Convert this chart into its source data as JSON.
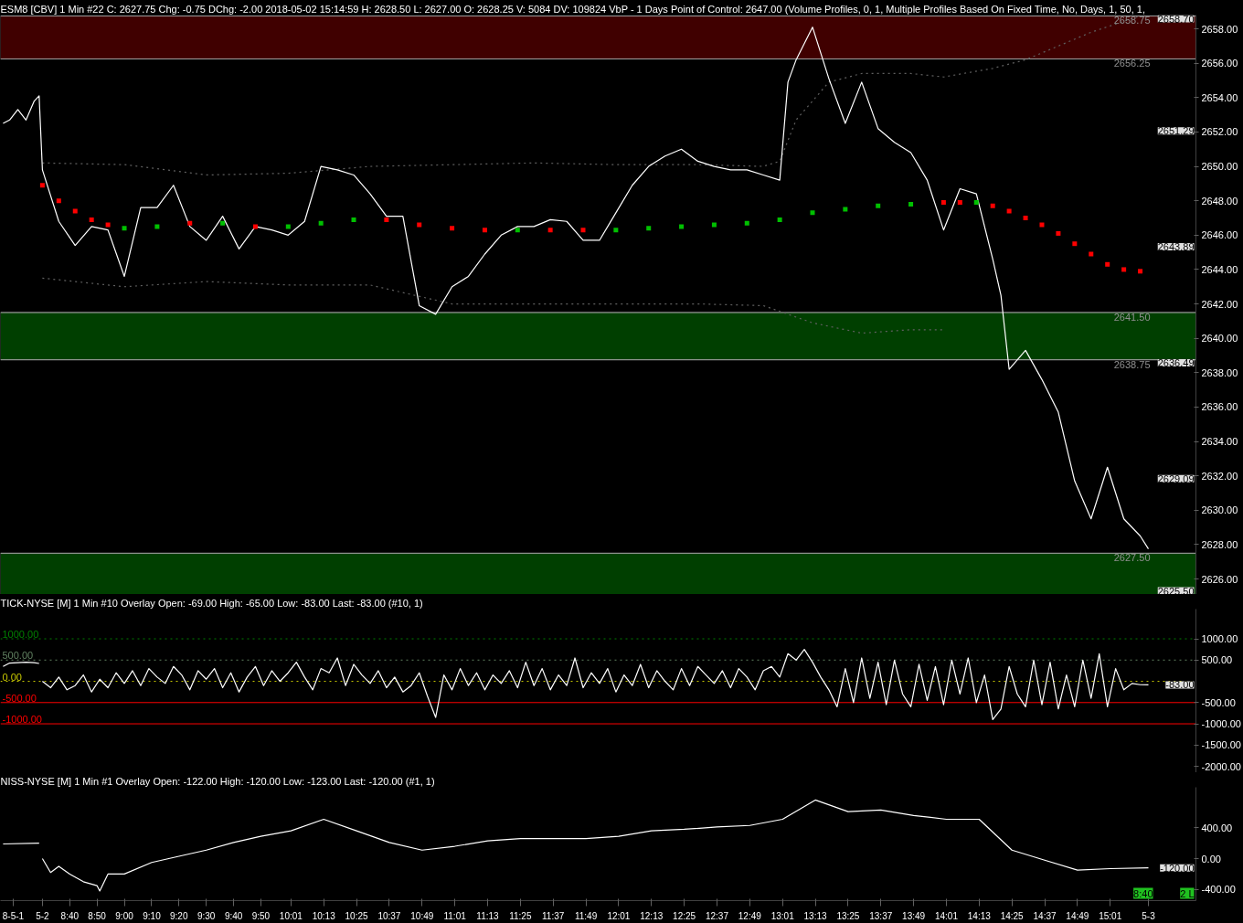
{
  "chart_data": [
    {
      "type": "line",
      "title": "ESM8 [CBV]  1 Min  #22 C: 2627.75 Chg: -0.75 DChg: -2.00 2018-05-02 15:14:59 H: 2628.50 L: 2627.00 O: 2628.25 V: 5084 DV: 109824 VbP - 1 Days  Point of Control: 2647.00  (Volume Profiles, 0, 1, Multiple Profiles Based On Fixed Time, No, Days, 1, 50, 1,",
      "xlim": [
        8.244,
        15.54
      ],
      "ylim": [
        2625.1,
        2658.8
      ],
      "tick_labels": "y",
      "grid": false,
      "yticks": [
        {
          "value": 2626,
          "label": "2626.00"
        },
        {
          "value": 2628,
          "label": "2628.00"
        },
        {
          "value": 2630,
          "label": "2630.00"
        },
        {
          "value": 2632,
          "label": "2632.00"
        },
        {
          "value": 2634,
          "label": "2634.00"
        },
        {
          "value": 2636,
          "label": "2636.00"
        },
        {
          "value": 2638,
          "label": "2638.00"
        },
        {
          "value": 2640,
          "label": "2640.00"
        },
        {
          "value": 2642,
          "label": "2642.00"
        },
        {
          "value": 2644,
          "label": "2644.00"
        },
        {
          "value": 2646,
          "label": "2646.00"
        },
        {
          "value": 2648,
          "label": "2648.00"
        },
        {
          "value": 2650,
          "label": "2650.00"
        },
        {
          "value": 2652,
          "label": "2652.00"
        },
        {
          "value": 2654,
          "label": "2654.00"
        },
        {
          "value": 2656,
          "label": "2656.00"
        },
        {
          "value": 2658,
          "label": "2658.00"
        }
      ],
      "bands": [
        {
          "axis": "y",
          "from": 2656.25,
          "to": 2658.75,
          "color": "#400000"
        },
        {
          "axis": "y",
          "from": 2638.75,
          "to": 2641.5,
          "color": "#003f00"
        },
        {
          "axis": "y",
          "from": 2625.1,
          "to": 2627.5,
          "color": "#003f00"
        }
      ],
      "ref_lines": [
        {
          "axis": "y",
          "value": 2658.75,
          "label": "2658.75",
          "color": "#a0a0a0",
          "line_style": "solid"
        },
        {
          "axis": "y",
          "value": 2656.25,
          "label": "2656.25",
          "color": "#a0a0a0",
          "line_style": "solid"
        },
        {
          "axis": "y",
          "value": 2641.5,
          "label": "2641.50",
          "color": "#a0a0a0",
          "line_style": "solid"
        },
        {
          "axis": "y",
          "value": 2638.75,
          "label": "2638.75",
          "color": "#a0a0a0",
          "line_style": "solid"
        },
        {
          "axis": "y",
          "value": 2627.5,
          "label": "2627.50",
          "color": "#a0a0a0",
          "line_style": "solid"
        }
      ],
      "annotations": [
        "2658.70",
        "2651.29",
        "2643.89",
        "2636.49",
        "2629.09",
        "2625.50"
      ],
      "series": [
        {
          "color": "#606060",
          "line_style": "dotted",
          "x": [
            8.5,
            9.0,
            9.5,
            10.0,
            10.5,
            11.0,
            11.5,
            12.0,
            12.5,
            12.9,
            13.0,
            13.1,
            13.3,
            13.5,
            13.8,
            14.0,
            14.3,
            14.5,
            14.7,
            14.9,
            15.2
          ],
          "values": [
            2650.2,
            2650.1,
            2649.5,
            2649.6,
            2650.0,
            2650.1,
            2650.2,
            2650.1,
            2650.1,
            2650.0,
            2650.3,
            2652.7,
            2654.9,
            2655.4,
            2655.4,
            2655.2,
            2655.7,
            2656.2,
            2657.0,
            2657.8,
            2658.75
          ]
        },
        {
          "color": "#606060",
          "line_style": "dotted",
          "x": [
            8.5,
            9.0,
            9.5,
            10.0,
            10.5,
            11.0,
            11.5,
            12.0,
            12.5,
            12.9,
            13.05,
            13.2,
            13.5,
            13.8,
            14.0
          ],
          "values": [
            2643.5,
            2643.0,
            2643.3,
            2643.1,
            2643.1,
            2642.0,
            2642.0,
            2642.0,
            2642.0,
            2641.9,
            2641.4,
            2640.9,
            2640.3,
            2640.5,
            2640.5
          ]
        },
        {
          "type": "scatter",
          "marker": "square",
          "x": [
            8.5,
            8.6,
            8.7,
            8.8,
            8.9,
            9.0,
            9.2,
            9.4,
            9.6,
            9.8,
            10.0,
            10.2,
            10.4,
            10.6,
            10.8,
            11.0,
            11.2,
            11.4,
            11.6,
            11.8,
            12.0,
            12.2,
            12.4,
            12.6,
            12.8,
            13.0,
            13.2,
            13.4,
            13.6,
            13.8,
            14.0,
            14.1,
            14.2,
            14.3,
            14.4,
            14.5,
            14.6,
            14.7,
            14.8,
            14.9,
            15.0,
            15.1,
            15.2
          ],
          "values": [
            2648.9,
            2648.0,
            2647.4,
            2646.9,
            2646.6,
            2646.4,
            2646.5,
            2646.7,
            2646.7,
            2646.5,
            2646.5,
            2646.7,
            2646.9,
            2646.9,
            2646.6,
            2646.4,
            2646.3,
            2646.3,
            2646.3,
            2646.3,
            2646.3,
            2646.4,
            2646.5,
            2646.6,
            2646.7,
            2646.9,
            2647.3,
            2647.5,
            2647.7,
            2647.8,
            2647.9,
            2647.9,
            2647.9,
            2647.7,
            2647.4,
            2647.0,
            2646.6,
            2646.1,
            2645.5,
            2644.9,
            2644.3,
            2644.0,
            2643.9
          ],
          "colors": [
            "#ff0000",
            "#ff0000",
            "#ff0000",
            "#ff0000",
            "#ff0000",
            "#00c000",
            "#00c000",
            "#ff0000",
            "#00c000",
            "#ff0000",
            "#00c000",
            "#00c000",
            "#00c000",
            "#ff0000",
            "#ff0000",
            "#ff0000",
            "#ff0000",
            "#00c000",
            "#ff0000",
            "#ff0000",
            "#00c000",
            "#00c000",
            "#00c000",
            "#00c000",
            "#00c000",
            "#00c000",
            "#00c000",
            "#00c000",
            "#00c000",
            "#00c000",
            "#ff0000",
            "#ff0000",
            "#00c000",
            "#ff0000",
            "#ff0000",
            "#ff0000",
            "#ff0000",
            "#ff0000",
            "#ff0000",
            "#ff0000",
            "#ff0000",
            "#ff0000",
            "#ff0000"
          ]
        },
        {
          "color": "#ffffff",
          "line_style": "solid",
          "x": [
            8.26,
            8.3,
            8.35,
            8.4,
            8.45,
            8.48,
            8.5,
            8.6,
            8.7,
            8.8,
            8.9,
            9.0,
            9.1,
            9.2,
            9.3,
            9.4,
            9.5,
            9.6,
            9.7,
            9.8,
            9.9,
            10.0,
            10.1,
            10.2,
            10.3,
            10.4,
            10.5,
            10.6,
            10.7,
            10.8,
            10.9,
            11.0,
            11.1,
            11.2,
            11.3,
            11.4,
            11.5,
            11.6,
            11.7,
            11.8,
            11.9,
            12.0,
            12.1,
            12.2,
            12.3,
            12.4,
            12.5,
            12.6,
            12.7,
            12.8,
            12.9,
            13.0,
            13.05,
            13.1,
            13.2,
            13.3,
            13.4,
            13.5,
            13.6,
            13.7,
            13.8,
            13.9,
            14.0,
            14.1,
            14.2,
            14.3,
            14.35,
            14.4,
            14.5,
            14.6,
            14.7,
            14.8,
            14.9,
            15.0,
            15.1,
            15.2,
            15.25
          ],
          "values": [
            2652.5,
            2652.7,
            2653.3,
            2652.7,
            2653.8,
            2654.1,
            2649.8,
            2646.8,
            2645.4,
            2646.5,
            2646.3,
            2643.6,
            2647.6,
            2647.6,
            2648.9,
            2646.5,
            2645.7,
            2647.1,
            2645.2,
            2646.5,
            2646.3,
            2646.0,
            2646.8,
            2650.0,
            2649.8,
            2649.5,
            2648.4,
            2647.1,
            2647.1,
            2641.9,
            2641.4,
            2643.0,
            2643.6,
            2644.9,
            2646.0,
            2646.5,
            2646.5,
            2646.9,
            2646.8,
            2645.7,
            2645.7,
            2647.3,
            2648.9,
            2650.0,
            2650.6,
            2651.0,
            2650.3,
            2650.0,
            2649.8,
            2649.8,
            2649.5,
            2649.2,
            2654.9,
            2656.2,
            2658.1,
            2655.1,
            2652.5,
            2654.9,
            2652.2,
            2651.4,
            2650.8,
            2649.2,
            2646.3,
            2648.7,
            2648.4,
            2644.6,
            2642.5,
            2638.2,
            2639.3,
            2637.6,
            2635.7,
            2631.7,
            2629.5,
            2632.5,
            2629.5,
            2628.5,
            2627.75
          ]
        }
      ]
    },
    {
      "type": "line",
      "title": "TICK-NYSE [M]  1 Min  #10 Overlay  Open: -69.00  High: -65.00  Low: -83.00  Last: -83.00  (#10, 1)",
      "xlim": [
        8.244,
        15.54
      ],
      "ylim": [
        -2150,
        1700
      ],
      "tick_labels": "y",
      "grid": false,
      "yticks": [
        {
          "value": 1000,
          "label": "1000.00"
        },
        {
          "value": 500,
          "label": "500.00"
        },
        {
          "value": -500,
          "label": "-500.00"
        },
        {
          "value": -1000,
          "label": "-1000.00"
        },
        {
          "value": -1500,
          "label": "-1500.00"
        },
        {
          "value": -2000,
          "label": "-2000.00"
        }
      ],
      "ref_lines": [
        {
          "axis": "y",
          "value": 1000,
          "label": "1000.00",
          "color": "#008000",
          "line_style": "dotted"
        },
        {
          "axis": "y",
          "value": 500,
          "label": "500.00",
          "color": "#608060",
          "line_style": "dotted"
        },
        {
          "axis": "y",
          "value": 0,
          "label": "0.00",
          "color": "#c8c800",
          "line_style": "dotted"
        },
        {
          "axis": "y",
          "value": -500,
          "label": "-500.00",
          "color": "#ff0000",
          "line_style": "solid"
        },
        {
          "axis": "y",
          "value": -1000,
          "label": "-1000.00",
          "color": "#ff0000",
          "line_style": "solid"
        }
      ],
      "annotations": [
        "-83.00"
      ],
      "series": [
        {
          "color": "#ffffff",
          "line_style": "solid",
          "x": [
            8.26,
            8.3,
            8.35,
            8.4,
            8.45,
            8.48
          ],
          "values": [
            350,
            430,
            440,
            450,
            440,
            420
          ]
        },
        {
          "color": "#ffffff",
          "line_style": "solid",
          "x": [
            8.5,
            8.55,
            8.6,
            8.65,
            8.7,
            8.75,
            8.8,
            8.85,
            8.9,
            8.95,
            9.0,
            9.05,
            9.1,
            9.15,
            9.2,
            9.25,
            9.3,
            9.35,
            9.4,
            9.45,
            9.5,
            9.55,
            9.6,
            9.65,
            9.7,
            9.75,
            9.8,
            9.85,
            9.9,
            9.95,
            10.0,
            10.05,
            10.1,
            10.15,
            10.2,
            10.25,
            10.3,
            10.35,
            10.4,
            10.45,
            10.5,
            10.55,
            10.6,
            10.65,
            10.7,
            10.75,
            10.8,
            10.85,
            10.9,
            10.95,
            11.0,
            11.05,
            11.1,
            11.15,
            11.2,
            11.25,
            11.3,
            11.35,
            11.4,
            11.45,
            11.5,
            11.55,
            11.6,
            11.65,
            11.7,
            11.75,
            11.8,
            11.85,
            11.9,
            11.95,
            12.0,
            12.05,
            12.1,
            12.15,
            12.2,
            12.25,
            12.3,
            12.35,
            12.4,
            12.45,
            12.5,
            12.55,
            12.6,
            12.65,
            12.7,
            12.75,
            12.8,
            12.85,
            12.9,
            12.95,
            13.0,
            13.05,
            13.1,
            13.15,
            13.2,
            13.25,
            13.3,
            13.35,
            13.4,
            13.45,
            13.5,
            13.55,
            13.6,
            13.65,
            13.7,
            13.75,
            13.8,
            13.85,
            13.9,
            13.95,
            14.0,
            14.05,
            14.1,
            14.15,
            14.2,
            14.25,
            14.3,
            14.35,
            14.4,
            14.45,
            14.5,
            14.55,
            14.6,
            14.65,
            14.7,
            14.75,
            14.8,
            14.85,
            14.9,
            14.95,
            15.0,
            15.05,
            15.1,
            15.15,
            15.2,
            15.25
          ],
          "values": [
            0,
            -150,
            100,
            -200,
            -100,
            150,
            -250,
            50,
            -150,
            200,
            -50,
            250,
            -100,
            300,
            100,
            -50,
            350,
            150,
            -200,
            250,
            50,
            300,
            -150,
            200,
            -250,
            100,
            350,
            -100,
            250,
            0,
            200,
            450,
            100,
            -200,
            300,
            200,
            550,
            -100,
            400,
            150,
            -50,
            250,
            -150,
            100,
            -250,
            -100,
            200,
            -350,
            -850,
            150,
            -200,
            300,
            -100,
            200,
            -200,
            150,
            -50,
            250,
            -150,
            450,
            -100,
            300,
            -200,
            150,
            -100,
            550,
            -150,
            200,
            -50,
            300,
            -250,
            150,
            -100,
            400,
            -150,
            250,
            0,
            -200,
            300,
            -100,
            350,
            150,
            -50,
            250,
            -150,
            300,
            100,
            -200,
            250,
            350,
            100,
            650,
            500,
            750,
            450,
            100,
            -200,
            -600,
            300,
            -500,
            550,
            -400,
            450,
            -550,
            500,
            -300,
            -600,
            400,
            -450,
            350,
            -550,
            500,
            -300,
            550,
            -500,
            150,
            -900,
            -650,
            350,
            -300,
            -600,
            500,
            -550,
            450,
            -650,
            150,
            -600,
            500,
            -400,
            650,
            -600,
            300,
            -200,
            -50,
            -80,
            -83
          ]
        }
      ]
    },
    {
      "type": "line",
      "title": "NISS-NYSE [M]  1 Min  #1 Overlay  Open: -122.00  High: -120.00  Low: -123.00  Last: -120.00  (#1, 1)",
      "xlim": [
        8.244,
        15.54
      ],
      "ylim": [
        -545,
        925
      ],
      "grid": false,
      "yticks": [
        {
          "value": 400,
          "label": "400.00"
        },
        {
          "value": 0,
          "label": "0.00"
        },
        {
          "value": -400,
          "label": "-400.00"
        }
      ],
      "xticks": [
        {
          "value": 8.322,
          "label": "8-5-1"
        },
        {
          "value": 8.5,
          "label": "5-2"
        },
        {
          "value": 8.667,
          "label": "8:40"
        },
        {
          "value": 8.833,
          "label": "8:50"
        },
        {
          "value": 9.0,
          "label": "9:00"
        },
        {
          "value": 9.167,
          "label": "9:10"
        },
        {
          "value": 9.333,
          "label": "9:20"
        },
        {
          "value": 9.5,
          "label": "9:30"
        },
        {
          "value": 9.667,
          "label": "9:40"
        },
        {
          "value": 9.833,
          "label": "9:50"
        },
        {
          "value": 10.017,
          "label": "10:01"
        },
        {
          "value": 10.217,
          "label": "10:13"
        },
        {
          "value": 10.417,
          "label": "10:25"
        },
        {
          "value": 10.617,
          "label": "10:37"
        },
        {
          "value": 10.817,
          "label": "10:49"
        },
        {
          "value": 11.017,
          "label": "11:01"
        },
        {
          "value": 11.217,
          "label": "11:13"
        },
        {
          "value": 11.417,
          "label": "11:25"
        },
        {
          "value": 11.617,
          "label": "11:37"
        },
        {
          "value": 11.817,
          "label": "11:49"
        },
        {
          "value": 12.017,
          "label": "12:01"
        },
        {
          "value": 12.217,
          "label": "12:13"
        },
        {
          "value": 12.417,
          "label": "12:25"
        },
        {
          "value": 12.617,
          "label": "12:37"
        },
        {
          "value": 12.817,
          "label": "12:49"
        },
        {
          "value": 13.017,
          "label": "13:01"
        },
        {
          "value": 13.217,
          "label": "13:13"
        },
        {
          "value": 13.417,
          "label": "13:25"
        },
        {
          "value": 13.617,
          "label": "13:37"
        },
        {
          "value": 13.817,
          "label": "13:49"
        },
        {
          "value": 14.017,
          "label": "14:01"
        },
        {
          "value": 14.217,
          "label": "14:13"
        },
        {
          "value": 14.417,
          "label": "14:25"
        },
        {
          "value": 14.617,
          "label": "14:37"
        },
        {
          "value": 14.817,
          "label": "14:49"
        },
        {
          "value": 15.017,
          "label": "15:01"
        },
        {
          "value": 15.25,
          "label": "5-3"
        }
      ],
      "annotations": [
        "-120.00",
        "2 L",
        "8:40"
      ],
      "series": [
        {
          "color": "#ffffff",
          "line_style": "solid",
          "x": [
            8.26,
            8.48
          ],
          "values": [
            190,
            200
          ]
        },
        {
          "color": "#ffffff",
          "line_style": "solid",
          "x": [
            8.5,
            8.55,
            8.6,
            8.667,
            8.75,
            8.833,
            8.85,
            8.9,
            9.0,
            9.167,
            9.333,
            9.5,
            9.667,
            9.833,
            10.017,
            10.217,
            10.417,
            10.617,
            10.817,
            11.017,
            11.217,
            11.417,
            11.617,
            11.817,
            12.017,
            12.217,
            12.417,
            12.617,
            12.817,
            13.017,
            13.217,
            13.417,
            13.617,
            13.817,
            14.017,
            14.217,
            14.417,
            14.617,
            14.817,
            15.017,
            15.25
          ],
          "values": [
            0,
            -180,
            -100,
            -200,
            -300,
            -350,
            -420,
            -200,
            -200,
            -50,
            30,
            110,
            210,
            290,
            360,
            510,
            360,
            210,
            110,
            160,
            230,
            260,
            260,
            260,
            290,
            360,
            380,
            410,
            430,
            510,
            760,
            610,
            630,
            560,
            510,
            510,
            110,
            -20,
            -150,
            -130,
            -120
          ]
        }
      ]
    }
  ]
}
